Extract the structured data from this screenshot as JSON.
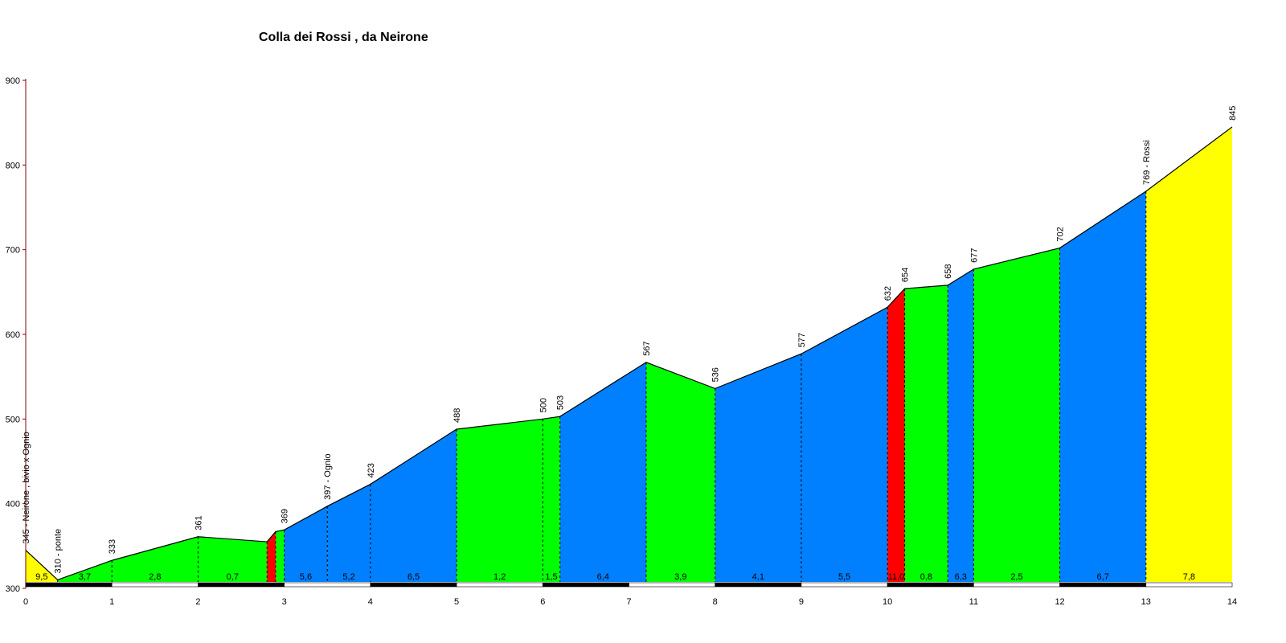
{
  "chart_data": {
    "type": "area",
    "title": "Colla dei Rossi , da Neirone",
    "xlabel": "",
    "ylabel": "",
    "xlim": [
      0,
      14
    ],
    "ylim": [
      300,
      900
    ],
    "x_ticks": [
      0,
      1,
      2,
      3,
      4,
      5,
      6,
      7,
      8,
      9,
      10,
      11,
      12,
      13,
      14
    ],
    "y_ticks": [
      300,
      400,
      500,
      600,
      700,
      800,
      900
    ],
    "grade_colors": {
      "yellow": "#ffff00",
      "green": "#00ff00",
      "blue": "#0080ff",
      "red": "#ff0000"
    },
    "points": [
      {
        "x": 0,
        "y": 345,
        "label": "345 - Neirone , bivio x Ognio"
      },
      {
        "x": 0.37,
        "y": 310,
        "label": "310 - ponte"
      },
      {
        "x": 1,
        "y": 333,
        "label": "333"
      },
      {
        "x": 2,
        "y": 361,
        "label": "361"
      },
      {
        "x": 2.8,
        "y": 355,
        "label": ""
      },
      {
        "x": 2.9,
        "y": 367,
        "label": ""
      },
      {
        "x": 3,
        "y": 369,
        "label": "369"
      },
      {
        "x": 3.5,
        "y": 397,
        "label": "397 - Ognio"
      },
      {
        "x": 4,
        "y": 423,
        "label": "423"
      },
      {
        "x": 5,
        "y": 488,
        "label": "488"
      },
      {
        "x": 6,
        "y": 500,
        "label": "500"
      },
      {
        "x": 6.2,
        "y": 503,
        "label": "503"
      },
      {
        "x": 7.2,
        "y": 567,
        "label": "567"
      },
      {
        "x": 8,
        "y": 536,
        "label": "536"
      },
      {
        "x": 9,
        "y": 577,
        "label": "577"
      },
      {
        "x": 10,
        "y": 632,
        "label": "632"
      },
      {
        "x": 10.2,
        "y": 654,
        "label": "654"
      },
      {
        "x": 10.7,
        "y": 658,
        "label": "658"
      },
      {
        "x": 11,
        "y": 677,
        "label": "677"
      },
      {
        "x": 12,
        "y": 702,
        "label": "702"
      },
      {
        "x": 13,
        "y": 769,
        "label": "769 - Rossi"
      },
      {
        "x": 14,
        "y": 845,
        "label": "845"
      }
    ],
    "segments": [
      {
        "grade": "9,5",
        "color": "yellow"
      },
      {
        "grade": "3,7",
        "color": "green"
      },
      {
        "grade": "2,8",
        "color": "green"
      },
      {
        "grade": "0,7",
        "color": "green"
      },
      {
        "grade": "",
        "color": "red"
      },
      {
        "grade": "",
        "color": "green"
      },
      {
        "grade": "5,6",
        "color": "blue"
      },
      {
        "grade": "5,2",
        "color": "blue"
      },
      {
        "grade": "6,5",
        "color": "blue"
      },
      {
        "grade": "1,2",
        "color": "green"
      },
      {
        "grade": "1,5",
        "color": "green"
      },
      {
        "grade": "6,4",
        "color": "blue"
      },
      {
        "grade": "3,9",
        "color": "green"
      },
      {
        "grade": "4,1",
        "color": "blue"
      },
      {
        "grade": "5,5",
        "color": "blue"
      },
      {
        "grade": "11,0",
        "color": "red"
      },
      {
        "grade": "0,8",
        "color": "green"
      },
      {
        "grade": "6,3",
        "color": "blue"
      },
      {
        "grade": "2,5",
        "color": "green"
      },
      {
        "grade": "6,7",
        "color": "blue"
      },
      {
        "grade": "7,8",
        "color": "yellow"
      }
    ]
  }
}
